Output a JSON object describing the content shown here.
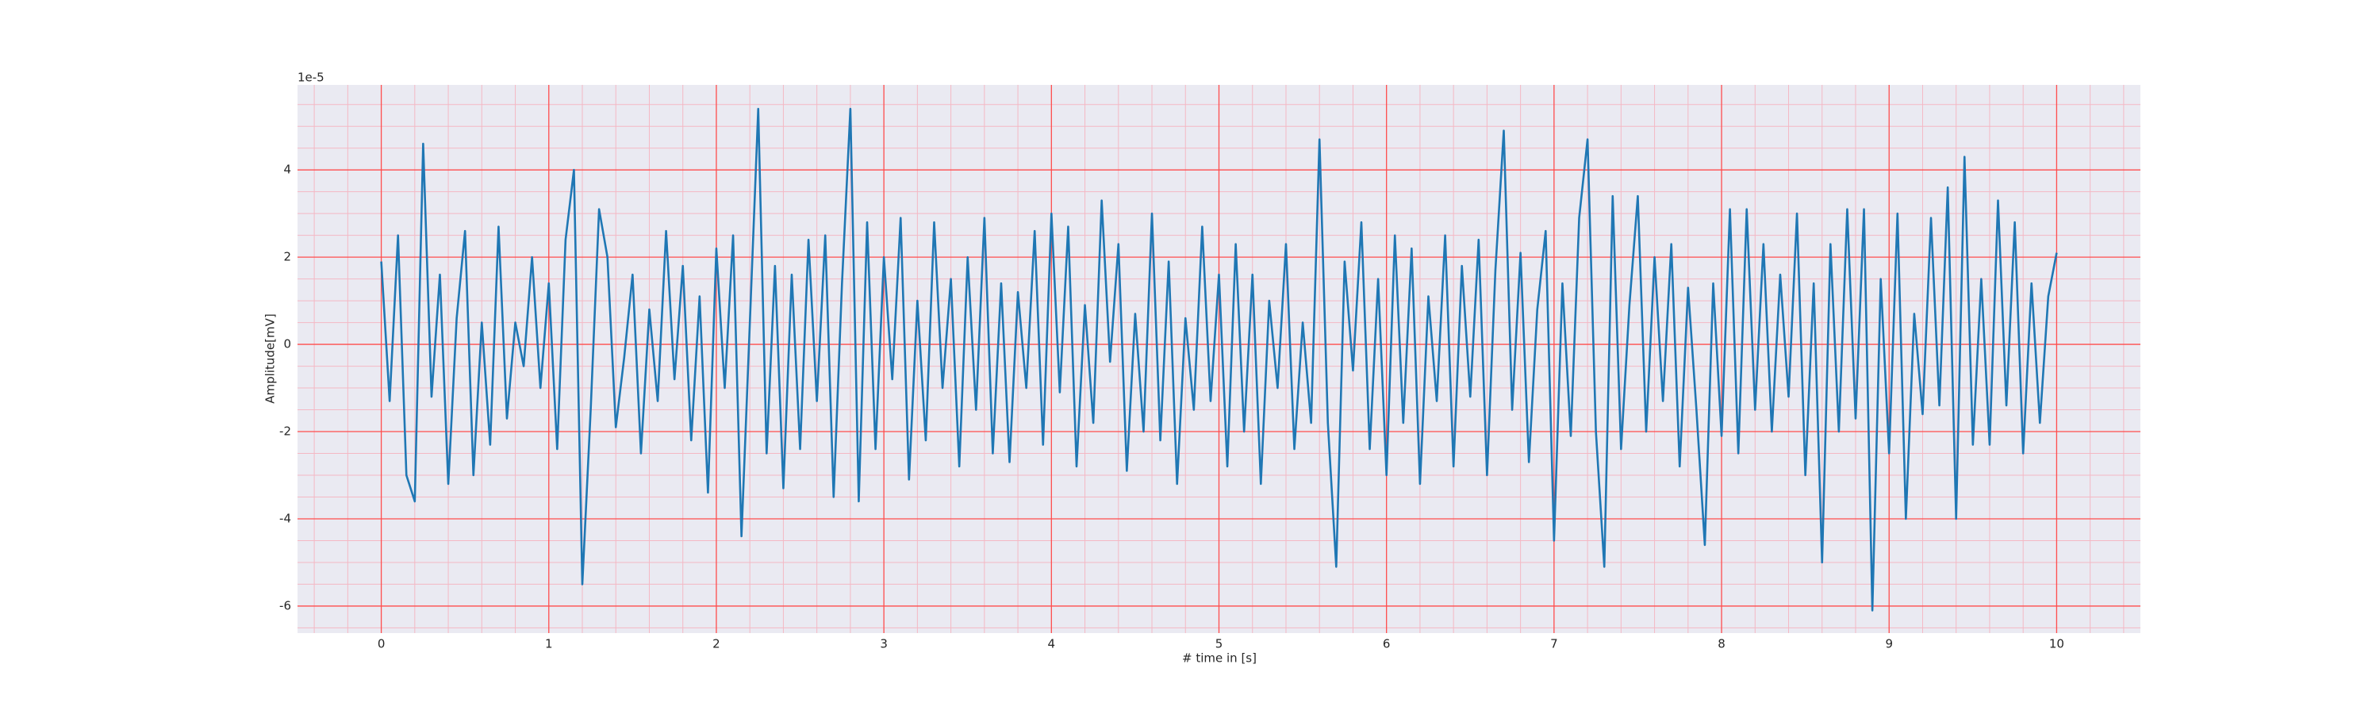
{
  "chart_data": {
    "type": "line",
    "x_label": "# time in [s]",
    "y_label": "Amplitude[mV]",
    "y_offset_label": "1e-5",
    "xlim": [
      -0.5,
      10.5
    ],
    "ylim": [
      -6.62,
      5.95
    ],
    "xticks": [
      0,
      1,
      2,
      3,
      4,
      5,
      6,
      7,
      8,
      9,
      10
    ],
    "yticks": [
      -6,
      -4,
      -2,
      0,
      2,
      4
    ],
    "grid": true,
    "grid_color": "#ff4d4d",
    "minor_grid_color": "#f4b8c4",
    "background": "#eaeaf2",
    "xminor": [
      -0.4,
      -0.2,
      0.2,
      0.4,
      0.6,
      0.8,
      1.2,
      1.4,
      1.6,
      1.8,
      2.2,
      2.4,
      2.6,
      2.8,
      3.2,
      3.4,
      3.6,
      3.8,
      4.2,
      4.4,
      4.6,
      4.8,
      5.2,
      5.4,
      5.6,
      5.8,
      6.2,
      6.4,
      6.6,
      6.8,
      7.2,
      7.4,
      7.6,
      7.8,
      8.2,
      8.4,
      8.6,
      8.8,
      9.2,
      9.4,
      9.6,
      9.8,
      10.2,
      10.4
    ],
    "yminor": [
      -6.5,
      -5.5,
      -5,
      -4.5,
      -3.5,
      -3,
      -2.5,
      -1.5,
      -1,
      -0.5,
      0.5,
      1,
      1.5,
      2.5,
      3,
      3.5,
      4.5,
      5,
      5.5
    ],
    "series": [
      {
        "color": "#1f77b4",
        "x": [
          0,
          0.05,
          0.1,
          0.15,
          0.2,
          0.25,
          0.3,
          0.35,
          0.4,
          0.45,
          0.5,
          0.55,
          0.6,
          0.65,
          0.7,
          0.75,
          0.8,
          0.85,
          0.9,
          0.95,
          1,
          1.05,
          1.1,
          1.15,
          1.2,
          1.25,
          1.3,
          1.35,
          1.4,
          1.45,
          1.5,
          1.55,
          1.6,
          1.65,
          1.7,
          1.75,
          1.8,
          1.85,
          1.9,
          1.95,
          2,
          2.05,
          2.1,
          2.15,
          2.2,
          2.25,
          2.3,
          2.35,
          2.4,
          2.45,
          2.5,
          2.55,
          2.6,
          2.65,
          2.7,
          2.75,
          2.8,
          2.85,
          2.9,
          2.95,
          3,
          3.05,
          3.1,
          3.15,
          3.2,
          3.25,
          3.3,
          3.35,
          3.4,
          3.45,
          3.5,
          3.55,
          3.6,
          3.65,
          3.7,
          3.75,
          3.8,
          3.85,
          3.9,
          3.95,
          4,
          4.05,
          4.1,
          4.15,
          4.2,
          4.25,
          4.3,
          4.35,
          4.4,
          4.45,
          4.5,
          4.55,
          4.6,
          4.65,
          4.7,
          4.75,
          4.8,
          4.85,
          4.9,
          4.95,
          5,
          5.05,
          5.1,
          5.15,
          5.2,
          5.25,
          5.3,
          5.35,
          5.4,
          5.45,
          5.5,
          5.55,
          5.6,
          5.65,
          5.7,
          5.75,
          5.8,
          5.85,
          5.9,
          5.95,
          6,
          6.05,
          6.1,
          6.15,
          6.2,
          6.25,
          6.3,
          6.35,
          6.4,
          6.45,
          6.5,
          6.55,
          6.6,
          6.65,
          6.7,
          6.75,
          6.8,
          6.85,
          6.9,
          6.95,
          7,
          7.05,
          7.1,
          7.15,
          7.2,
          7.25,
          7.3,
          7.35,
          7.4,
          7.45,
          7.5,
          7.55,
          7.6,
          7.65,
          7.7,
          7.75,
          7.8,
          7.85,
          7.9,
          7.95,
          8,
          8.05,
          8.1,
          8.15,
          8.2,
          8.25,
          8.3,
          8.35,
          8.4,
          8.45,
          8.5,
          8.55,
          8.6,
          8.65,
          8.7,
          8.75,
          8.8,
          8.85,
          8.9,
          8.95,
          9,
          9.05,
          9.1,
          9.15,
          9.2,
          9.25,
          9.3,
          9.35,
          9.4,
          9.45,
          9.5,
          9.55,
          9.6,
          9.65,
          9.7,
          9.75,
          9.8,
          9.85,
          9.9,
          9.95,
          10
        ],
        "values": [
          1.9,
          -1.3,
          2.5,
          -3.0,
          -3.6,
          4.6,
          -1.2,
          1.6,
          -3.2,
          0.6,
          2.6,
          -3.0,
          0.5,
          -2.3,
          2.7,
          -1.7,
          0.5,
          -0.5,
          2.0,
          -1.0,
          1.4,
          -2.4,
          2.4,
          4.0,
          -5.5,
          -1.5,
          3.1,
          2.0,
          -1.9,
          -0.3,
          1.6,
          -2.5,
          0.8,
          -1.3,
          2.6,
          -0.8,
          1.8,
          -2.2,
          1.1,
          -3.4,
          2.2,
          -1.0,
          2.5,
          -4.4,
          0.5,
          5.4,
          -2.5,
          1.8,
          -3.3,
          1.6,
          -2.4,
          2.4,
          -1.3,
          2.5,
          -3.5,
          1.4,
          5.4,
          -3.6,
          2.8,
          -2.4,
          2.0,
          -0.8,
          2.9,
          -3.1,
          1.0,
          -2.2,
          2.8,
          -1.0,
          1.5,
          -2.8,
          2.0,
          -1.5,
          2.9,
          -2.5,
          1.4,
          -2.7,
          1.2,
          -1.0,
          2.6,
          -2.3,
          3.0,
          -1.1,
          2.7,
          -2.8,
          0.9,
          -1.8,
          3.3,
          -0.4,
          2.3,
          -2.9,
          0.7,
          -2.0,
          3.0,
          -2.2,
          1.9,
          -3.2,
          0.6,
          -1.5,
          2.7,
          -1.3,
          1.6,
          -2.8,
          2.3,
          -2.0,
          1.6,
          -3.2,
          1.0,
          -1.0,
          2.3,
          -2.4,
          0.5,
          -1.8,
          4.7,
          -1.8,
          -5.1,
          1.9,
          -0.6,
          2.8,
          -2.4,
          1.5,
          -3.0,
          2.5,
          -1.8,
          2.2,
          -3.2,
          1.1,
          -1.3,
          2.5,
          -2.8,
          1.8,
          -1.2,
          2.4,
          -3.0,
          1.7,
          4.9,
          -1.5,
          2.1,
          -2.7,
          0.8,
          2.6,
          -4.5,
          1.4,
          -2.1,
          2.9,
          4.7,
          -2.0,
          -5.1,
          3.4,
          -2.4,
          0.9,
          3.4,
          -2.0,
          2.0,
          -1.3,
          2.3,
          -2.8,
          1.3,
          -1.5,
          -4.6,
          1.4,
          -2.1,
          3.1,
          -2.5,
          3.1,
          -1.5,
          2.3,
          -2.0,
          1.6,
          -1.2,
          3.0,
          -3.0,
          1.4,
          -5.0,
          2.3,
          -2.0,
          3.1,
          -1.7,
          3.1,
          -6.1,
          1.5,
          -2.5,
          3.0,
          -4.0,
          0.7,
          -1.6,
          2.9,
          -1.4,
          3.6,
          -4.0,
          4.3,
          -2.3,
          1.5,
          -2.3,
          3.3,
          -1.4,
          2.8,
          -2.5,
          1.4,
          -1.8,
          1.1,
          2.1
        ]
      }
    ]
  }
}
